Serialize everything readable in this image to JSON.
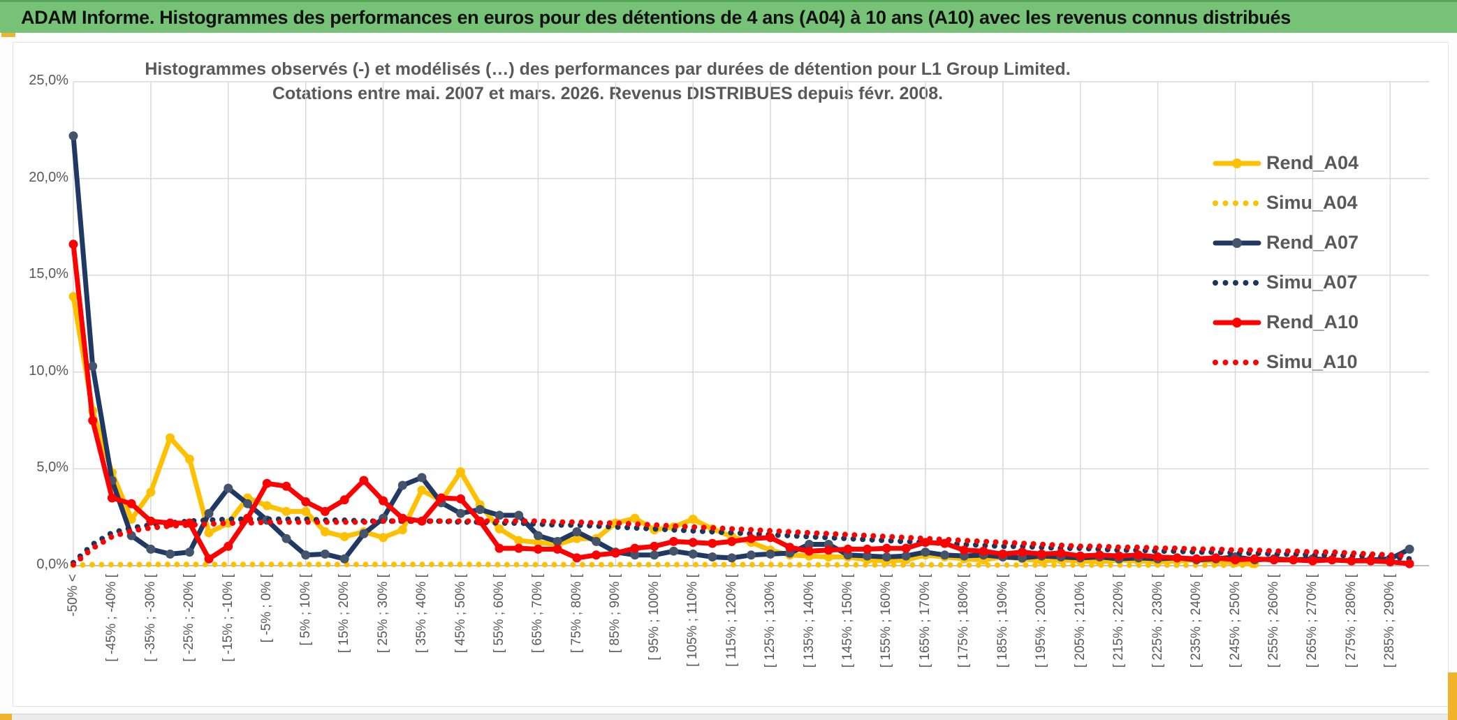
{
  "header": {
    "title": "ADAM Informe. Histogrammes des performances en euros pour des détentions de 4 ans (A04) à 10 ans (A10) avec les revenus connus distribués",
    "bg_color": "#76c276",
    "accent_color": "#f2b32c"
  },
  "chart_data": {
    "type": "line",
    "title_line1": "Histogrammes observés (-) et modélisés (…) des performances par durées de détention pour L1 Group Limited.",
    "title_line2": "Cotations entre mai. 2007 et mars. 2026. Revenus DISTRIBUES depuis févr. 2008.",
    "y_tick_labels": [
      "0,0%",
      "5,0%",
      "10,0%",
      "15,0%",
      "20,0%",
      "25,0%"
    ],
    "ylim": [
      0,
      25
    ],
    "grid": true,
    "legend_position": "right",
    "n_bins": 70,
    "ticks_every_n_bins": 2,
    "x_tick_labels": [
      "-50% <",
      "[ -45% ; -40% [",
      "[ -35% ; -30% [",
      "[ -25% ; -20% [",
      "[ -15% ; -10% [",
      "[ -5% ; 0% [",
      "[ 5% ; 10% [",
      "[ 15% ; 20% [",
      "[ 25% ; 30% [",
      "[ 35% ; 40% [",
      "[ 45% ; 50% [",
      "[ 55% ; 60% [",
      "[ 65% ; 70% [",
      "[ 75% ; 80% [",
      "[ 85% ; 90% [",
      "[ 95% ; 100% [",
      "[ 105% ; 110% [",
      "[ 115% ; 120% [",
      "[ 125% ; 130% [",
      "[ 135% ; 140% [",
      "[ 145% ; 150% [",
      "[ 155% ; 160% [",
      "[ 165% ; 170% [",
      "[ 175% ; 180% [",
      "[ 185% ; 190% [",
      "[ 195% ; 200% [",
      "[ 205% ; 210% [",
      "[ 215% ; 220% [",
      "[ 225% ; 230% [",
      "[ 235% ; 240% [",
      "[ 245% ; 250% [",
      "[ 255% ; 260% [",
      "[ 265% ; 270% [",
      "[ 275% ; 280% [",
      "[ 285% ; 290% ["
    ],
    "series": [
      {
        "name": "Rend_A04",
        "style": "solid",
        "color": "#FFC000",
        "marker_color": "#FFC000",
        "values": [
          13.9,
          8.0,
          4.8,
          2.4,
          3.8,
          6.6,
          5.5,
          1.7,
          2.2,
          3.5,
          3.1,
          2.8,
          2.8,
          1.75,
          1.5,
          1.75,
          1.45,
          1.85,
          3.9,
          3.35,
          4.85,
          3.15,
          1.9,
          1.3,
          1.2,
          1.1,
          1.4,
          1.4,
          2.2,
          2.45,
          1.85,
          2.0,
          2.4,
          1.9,
          1.5,
          1.2,
          0.8,
          0.55,
          0.5,
          0.45,
          0.45,
          0.3,
          0.25,
          0.3,
          0.55,
          0.45,
          0.35,
          0.3,
          0.45,
          0.35,
          0.25,
          0.3,
          0.25,
          0.2,
          0.3,
          0.25,
          0.2,
          0.25,
          0.3,
          0.2,
          0.15,
          0.1,
          null,
          null,
          null,
          null,
          null,
          null,
          null,
          null
        ]
      },
      {
        "name": "Simu_A04",
        "style": "dotted",
        "color": "#FFC000",
        "values": [
          0.02,
          0.05,
          0.05,
          0.05,
          0.06,
          0.06,
          0.06,
          0.06,
          0.06,
          0.06,
          0.06,
          0.06,
          0.06,
          0.06,
          0.06,
          0.06,
          0.06,
          0.06,
          0.06,
          0.06,
          0.06,
          0.06,
          0.05,
          0.05,
          0.05,
          0.05,
          0.05,
          0.05,
          0.05,
          0.05,
          0.05,
          0.05,
          0.05,
          0.05,
          0.05,
          0.05,
          0.05,
          0.04,
          0.04,
          0.04,
          0.04,
          0.04,
          0.04,
          0.04,
          0.04,
          0.04,
          0.03,
          0.03,
          0.03,
          0.03,
          0.03,
          0.03,
          0.03,
          0.03,
          0.03,
          0.03,
          0.03,
          0.02,
          0.02,
          0.02,
          0.02,
          0.02,
          null,
          null,
          null,
          null,
          null,
          null,
          null,
          null
        ]
      },
      {
        "name": "Rend_A07",
        "style": "solid",
        "color": "#1F3864",
        "marker_color": "#44546A",
        "values": [
          22.2,
          10.3,
          4.4,
          1.55,
          0.85,
          0.6,
          0.7,
          2.7,
          4.0,
          3.2,
          2.35,
          1.4,
          0.55,
          0.6,
          0.35,
          1.65,
          2.45,
          4.15,
          4.55,
          3.25,
          2.7,
          2.9,
          2.6,
          2.6,
          1.55,
          1.25,
          1.75,
          1.25,
          0.7,
          0.55,
          0.55,
          0.75,
          0.6,
          0.45,
          0.4,
          0.55,
          0.6,
          0.65,
          1.1,
          1.1,
          0.55,
          0.5,
          0.45,
          0.5,
          0.7,
          0.55,
          0.5,
          0.55,
          0.45,
          0.4,
          0.5,
          0.45,
          0.4,
          0.45,
          0.35,
          0.4,
          0.35,
          0.4,
          0.3,
          0.35,
          0.45,
          0.3,
          0.35,
          0.3,
          0.35,
          0.3,
          0.25,
          0.3,
          0.35,
          0.85
        ]
      },
      {
        "name": "Simu_A07",
        "style": "dotted",
        "color": "#17375E",
        "values": [
          0.15,
          1.1,
          1.7,
          1.95,
          2.1,
          2.2,
          2.3,
          2.35,
          2.4,
          2.4,
          2.4,
          2.4,
          2.4,
          2.35,
          2.35,
          2.3,
          2.3,
          2.3,
          2.3,
          2.3,
          2.25,
          2.25,
          2.2,
          2.2,
          2.15,
          2.1,
          2.1,
          2.05,
          2.0,
          1.95,
          1.9,
          1.85,
          1.8,
          1.75,
          1.7,
          1.65,
          1.6,
          1.55,
          1.5,
          1.45,
          1.4,
          1.35,
          1.3,
          1.25,
          1.2,
          1.15,
          1.1,
          1.05,
          1.0,
          1.0,
          0.95,
          0.9,
          0.9,
          0.85,
          0.8,
          0.8,
          0.75,
          0.75,
          0.7,
          0.7,
          0.65,
          0.65,
          0.6,
          0.6,
          0.55,
          0.55,
          0.5,
          0.5,
          0.45,
          0.35
        ]
      },
      {
        "name": "Rend_A10",
        "style": "solid",
        "color": "#FF0000",
        "marker_color": "#FF0000",
        "values": [
          16.6,
          7.5,
          3.5,
          3.2,
          2.3,
          2.2,
          2.2,
          0.35,
          1.0,
          2.45,
          4.25,
          4.1,
          3.3,
          2.8,
          3.4,
          4.4,
          3.35,
          2.45,
          2.3,
          3.5,
          3.45,
          2.3,
          0.9,
          0.9,
          0.85,
          0.85,
          0.4,
          0.55,
          0.65,
          0.9,
          1.0,
          1.25,
          1.2,
          1.15,
          1.25,
          1.4,
          1.45,
          0.95,
          0.75,
          0.8,
          0.85,
          0.85,
          0.9,
          0.9,
          1.2,
          1.15,
          0.8,
          0.75,
          0.6,
          0.7,
          0.6,
          0.65,
          0.5,
          0.55,
          0.5,
          0.55,
          0.45,
          0.4,
          0.35,
          0.4,
          0.3,
          0.35,
          0.3,
          0.3,
          0.25,
          0.3,
          0.25,
          0.25,
          0.2,
          0.1
        ]
      },
      {
        "name": "Simu_A10",
        "style": "dotted",
        "color": "#FF0000",
        "values": [
          0.05,
          0.9,
          1.5,
          1.8,
          1.95,
          2.05,
          2.1,
          2.15,
          2.2,
          2.2,
          2.25,
          2.25,
          2.25,
          2.25,
          2.25,
          2.25,
          2.3,
          2.3,
          2.3,
          2.3,
          2.3,
          2.3,
          2.3,
          2.3,
          2.3,
          2.25,
          2.25,
          2.2,
          2.2,
          2.15,
          2.1,
          2.05,
          2.0,
          1.95,
          1.9,
          1.85,
          1.8,
          1.75,
          1.7,
          1.65,
          1.6,
          1.55,
          1.5,
          1.45,
          1.4,
          1.35,
          1.3,
          1.25,
          1.2,
          1.15,
          1.1,
          1.05,
          1.0,
          1.0,
          0.95,
          0.95,
          0.9,
          0.9,
          0.85,
          0.85,
          0.8,
          0.8,
          0.75,
          0.75,
          0.7,
          0.7,
          0.65,
          0.6,
          0.55,
          0.5
        ]
      }
    ],
    "colors": {
      "grid": "#d9d9d9",
      "axis": "#bfbfbf",
      "text": "#595959"
    }
  }
}
